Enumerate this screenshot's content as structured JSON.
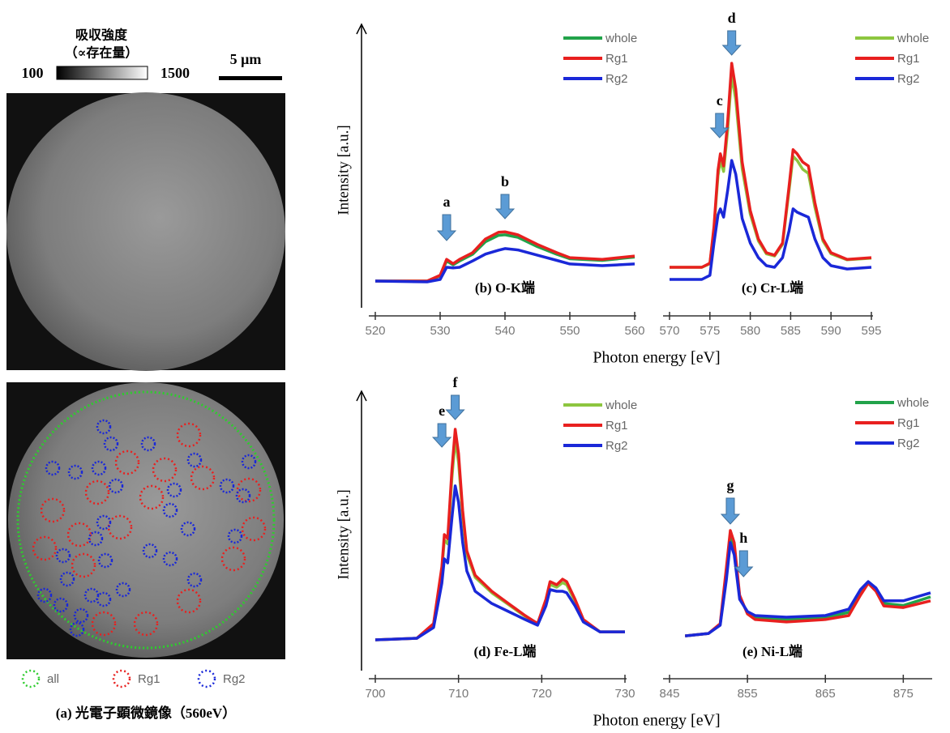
{
  "image_panel": {
    "colorbar_title": "吸収強度",
    "colorbar_subtitle": "（∝存在量）",
    "colorbar_min": "100",
    "colorbar_max": "1500",
    "scale_bar": "5 μm",
    "legend": [
      {
        "name": "all",
        "color": "#2ecc2e"
      },
      {
        "name": "Rg1",
        "color": "#e8201f"
      },
      {
        "name": "Rg2",
        "color": "#1a28d8"
      }
    ],
    "caption": "(a) 光電子顕微鏡像（560eV）"
  },
  "chart_data": [
    {
      "type": "line",
      "label": "(b) O-K端",
      "ylabel": "Intensity [a.u.]",
      "xlabel": "Photon energy [eV]",
      "x": [
        520,
        528,
        530,
        531,
        532,
        533,
        535,
        537,
        539,
        540,
        542,
        545,
        548,
        550,
        555,
        560
      ],
      "series": [
        {
          "name": "whole",
          "color": "#22a34a",
          "values": [
            9.7,
            9.7,
            11.6,
            17,
            15.6,
            17,
            19.4,
            24,
            26.3,
            26.5,
            25.6,
            22.2,
            19.4,
            17.8,
            17.2,
            18.4
          ]
        },
        {
          "name": "Rg1",
          "color": "#e8201f",
          "values": [
            9.7,
            9.7,
            11.8,
            17.6,
            16,
            17.6,
            20,
            25,
            27.4,
            27.6,
            26.5,
            23,
            20,
            18.2,
            17.6,
            18.8
          ]
        },
        {
          "name": "Rg2",
          "color": "#1a28d8",
          "values": [
            9.7,
            9.4,
            10.3,
            14.7,
            14.5,
            14.7,
            17,
            19.5,
            20.9,
            21.5,
            21,
            19.1,
            17.2,
            15.9,
            15.3,
            15.9
          ]
        }
      ],
      "xlim": [
        520,
        560
      ],
      "xticks": [
        520,
        530,
        540,
        550,
        560
      ],
      "ylim": [
        0,
        100
      ],
      "annotations": [
        {
          "text": "a",
          "x": 531
        },
        {
          "text": "b",
          "x": 540
        }
      ]
    },
    {
      "type": "line",
      "label": "(c) Cr-L端",
      "x": [
        570,
        574,
        575,
        575.5,
        576,
        576.3,
        576.7,
        577.2,
        577.7,
        578.2,
        579,
        580,
        581,
        582,
        583,
        584,
        584.8,
        585.3,
        585.8,
        586.5,
        587.2,
        588,
        589,
        590,
        592,
        595
      ],
      "series": [
        {
          "name": "whole",
          "color": "#8dc63f",
          "values": [
            14.7,
            14.7,
            16,
            28.5,
            48,
            53.5,
            49.5,
            64.5,
            84.5,
            75.5,
            50.5,
            34,
            24.3,
            19.6,
            18.8,
            23,
            42.5,
            55,
            53.5,
            50.3,
            48.8,
            36.5,
            24.3,
            19.6,
            17.4,
            18
          ]
        },
        {
          "name": "Rg1",
          "color": "#e8201f",
          "values": [
            14.7,
            14.7,
            16.2,
            29.4,
            50,
            55.9,
            51.5,
            67.6,
            88.8,
            79.4,
            52.9,
            35.3,
            25,
            20,
            19.1,
            23.5,
            44,
            57.4,
            55.9,
            52.9,
            51.5,
            38.2,
            25,
            20,
            17.6,
            18.2
          ]
        },
        {
          "name": "Rg2",
          "color": "#1a28d8",
          "values": [
            10.3,
            10.3,
            11.8,
            23.5,
            33.8,
            35.9,
            32.9,
            42.6,
            53.5,
            48.5,
            32.4,
            23.5,
            18.2,
            15.3,
            14.7,
            18.2,
            27.9,
            35.9,
            34.7,
            33.8,
            32.9,
            25,
            18.2,
            15.3,
            14.1,
            14.7
          ]
        }
      ],
      "xlim": [
        570,
        595
      ],
      "xticks": [
        570,
        575,
        580,
        585,
        590,
        595
      ],
      "ylim": [
        0,
        100
      ],
      "annotations": [
        {
          "text": "c",
          "x": 576.2
        },
        {
          "text": "d",
          "x": 577.7
        }
      ]
    },
    {
      "type": "line",
      "label": "(d) Fe-L端",
      "ylabel": "Intensity [a.u.]",
      "xlabel": "Photon energy [eV]",
      "x": [
        700,
        705,
        707,
        708,
        708.3,
        708.7,
        709.2,
        709.6,
        710,
        710.5,
        711,
        712,
        714,
        716,
        718,
        719.5,
        720.5,
        721,
        721.8,
        722.5,
        723,
        724,
        725,
        727,
        730
      ],
      "series": [
        {
          "name": "whole",
          "color": "#8dc63f",
          "values": [
            10.6,
            11.2,
            16.5,
            36.5,
            48,
            46.5,
            71,
            85.5,
            77,
            57,
            42.5,
            34,
            28.2,
            23.8,
            19.4,
            16.5,
            25,
            31.3,
            30.3,
            32,
            31.2,
            25,
            17.9,
            13.6,
            13.6
          ]
        },
        {
          "name": "Rg1",
          "color": "#e8201f",
          "values": [
            10.6,
            11.2,
            16.7,
            37.9,
            50,
            48.5,
            74.2,
            89.4,
            80.3,
            59,
            43.9,
            34.8,
            28.8,
            24.2,
            19.7,
            16.7,
            25.8,
            32.4,
            31.2,
            33.3,
            32.4,
            25.8,
            18.2,
            13.6,
            13.6
          ]
        },
        {
          "name": "Rg2",
          "color": "#1a28d8",
          "values": [
            10.6,
            11.2,
            15.2,
            31.8,
            40.9,
            39.4,
            56.1,
            68.2,
            62.1,
            47,
            36.4,
            28.8,
            24.2,
            21.2,
            18.2,
            16.1,
            23.3,
            29.4,
            28.8,
            28.8,
            28.2,
            23.3,
            17.3,
            13.6,
            13.6
          ]
        }
      ],
      "xlim": [
        700,
        730
      ],
      "xticks": [
        700,
        710,
        720,
        730
      ],
      "ylim": [
        0,
        100
      ],
      "annotations": [
        {
          "text": "e",
          "x": 708
        },
        {
          "text": "f",
          "x": 709.6
        }
      ]
    },
    {
      "type": "line",
      "label": "(e) Ni-L端",
      "x": [
        847,
        850,
        851.5,
        852.3,
        852.8,
        853.3,
        854,
        855,
        856,
        860,
        865,
        868,
        869.5,
        870.5,
        871.5,
        872.5,
        875,
        878.5
      ],
      "series": [
        {
          "name": "whole",
          "color": "#22a34a",
          "values": [
            12.1,
            13,
            16.4,
            35.6,
            49.2,
            44.7,
            26.5,
            20.7,
            18.9,
            18.2,
            18.9,
            20.9,
            28.3,
            32.1,
            29.4,
            24.2,
            23.5,
            26.7
          ]
        },
        {
          "name": "Rg1",
          "color": "#e8201f",
          "values": [
            12.1,
            13,
            16.7,
            37.9,
            51.5,
            47,
            27.3,
            20.3,
            18.2,
            17.3,
            18.2,
            19.7,
            27.3,
            31.8,
            28.8,
            23.3,
            22.7,
            25.2
          ]
        },
        {
          "name": "Rg2",
          "color": "#1a28d8",
          "values": [
            12.1,
            13,
            16.1,
            33.3,
            47,
            42.4,
            25.8,
            21.2,
            19.7,
            19.1,
            19.7,
            22.1,
            29.4,
            32.4,
            30,
            25.2,
            25.2,
            28.2
          ]
        }
      ],
      "xlim": [
        845,
        878.5
      ],
      "xticks": [
        845,
        855,
        865,
        875
      ],
      "ylim": [
        0,
        100
      ],
      "annotations": [
        {
          "text": "g",
          "x": 852.8
        },
        {
          "text": "h",
          "x": 854.5
        }
      ]
    }
  ]
}
